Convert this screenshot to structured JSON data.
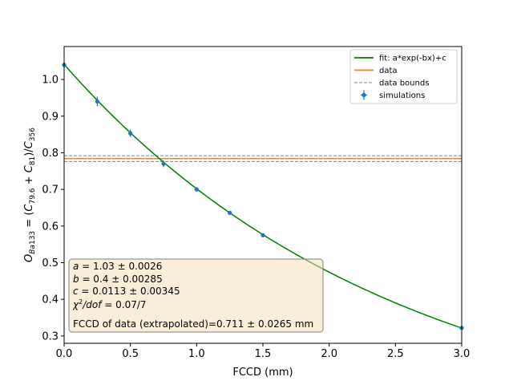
{
  "chart_data": {
    "type": "scatter",
    "xlabel": "FCCD (mm)",
    "ylabel": "O_Ba133 = (C_79.6 + C_81)/C_356",
    "xlim": [
      0.0,
      3.0
    ],
    "ylim": [
      0.28,
      1.09
    ],
    "xticks": [
      0.0,
      0.5,
      1.0,
      1.5,
      2.0,
      2.5,
      3.0
    ],
    "xtick_labels": [
      "0.0",
      "0.5",
      "1.0",
      "1.5",
      "2.0",
      "2.5",
      "3.0"
    ],
    "yticks": [
      0.3,
      0.4,
      0.5,
      0.6,
      0.7,
      0.8,
      0.9,
      1.0
    ],
    "ytick_labels": [
      "0.3",
      "0.4",
      "0.5",
      "0.6",
      "0.7",
      "0.8",
      "0.9",
      "1.0"
    ],
    "grid": false,
    "legend_position": "top-right",
    "series": [
      {
        "name": "simulations",
        "kind": "errorbar-points",
        "color": "#1f77b4",
        "x": [
          0.0,
          0.25,
          0.5,
          0.75,
          1.0,
          1.25,
          1.5,
          3.0
        ],
        "y": [
          1.04,
          0.94,
          0.853,
          0.77,
          0.7,
          0.636,
          0.575,
          0.322
        ],
        "yerr": [
          0.008,
          0.013,
          0.01,
          0.009,
          0.006,
          0.005,
          0.005,
          0.004
        ]
      },
      {
        "name": "fit: a*exp(-bx)+c",
        "kind": "fit-curve",
        "color": "#008000",
        "a": 1.03,
        "b": 0.4,
        "c": 0.0113
      },
      {
        "name": "data",
        "kind": "hline",
        "color": "#ff7f0e",
        "y": 0.784
      },
      {
        "name": "data bounds",
        "kind": "hline-pair-dashed",
        "color": "#808080",
        "y": [
          0.776,
          0.792
        ]
      }
    ],
    "legend": [
      {
        "label": "fit: a*exp(-bx)+c",
        "style": "line",
        "color": "#008000"
      },
      {
        "label": "data",
        "style": "line",
        "color": "#ff7f0e"
      },
      {
        "label": "data bounds",
        "style": "dashed",
        "color": "#808080"
      },
      {
        "label": "simulations",
        "style": "marker-errorbar",
        "color": "#1f77b4"
      }
    ],
    "info_box": {
      "line_a": "a = 1.03 ± 0.0026",
      "line_b": "b = 0.4 ± 0.00285",
      "line_c": "c = 0.0113 ± 0.00345",
      "line_chi": "χ²/dof = 0.07/7",
      "line_fccd": "FCCD of data (extrapolated)=0.711 ± 0.0265 mm",
      "background_color": "#f5deb3"
    }
  }
}
